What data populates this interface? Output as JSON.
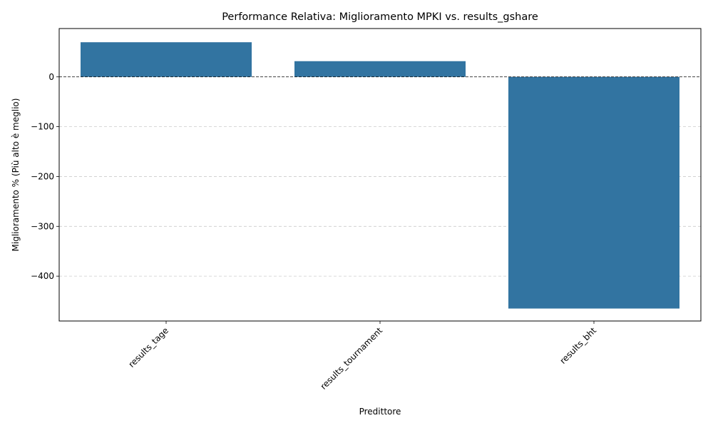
{
  "chart_data": {
    "type": "bar",
    "title": "Performance Relativa: Miglioramento MPKI vs. results_gshare",
    "xlabel": "Predittore",
    "ylabel": "Miglioramento % (Più alto è meglio)",
    "categories": [
      "results_tage",
      "results_tournament",
      "results_bht"
    ],
    "values": [
      69.5,
      31.5,
      -465
    ],
    "ylim": [
      -490,
      97
    ],
    "yticks": [
      0,
      -100,
      -200,
      -300,
      -400
    ],
    "ytick_labels": [
      "0",
      "−100",
      "−200",
      "−300",
      "−400"
    ],
    "grid": "y-dashed",
    "zero_line": true,
    "bar_color": "#3274a1",
    "grid_color": "#cccccc"
  }
}
